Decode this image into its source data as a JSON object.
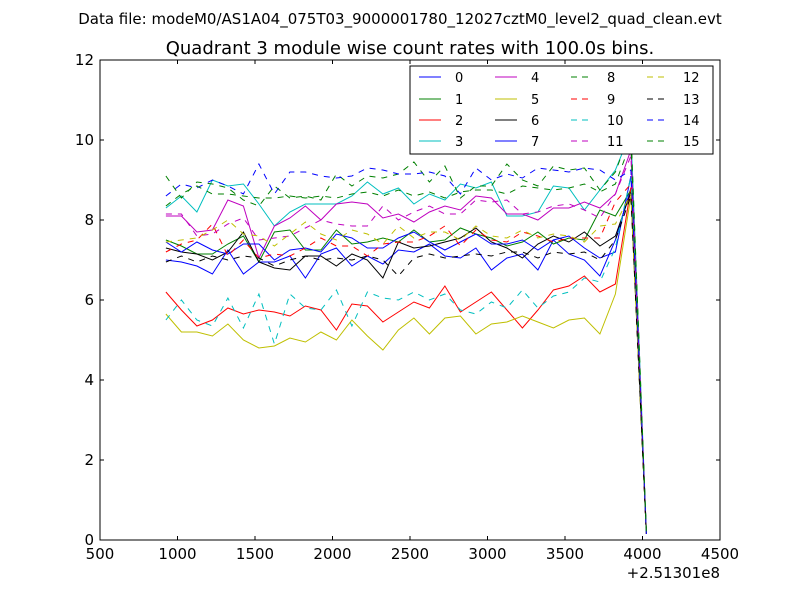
{
  "chart_data": {
    "type": "line",
    "suptitle": "Data file: modeM0/AS1A04_075T03_9000001780_12027cztM0_level2_quad_clean.evt",
    "title": "Quadrant 3 module wise count rates with 100.0s bins.",
    "xlabel": "",
    "ylabel": "",
    "xlim": [
      500,
      4500
    ],
    "ylim": [
      0,
      12
    ],
    "x_ticks": [
      500,
      1000,
      1500,
      2000,
      2500,
      3000,
      3500,
      4000,
      4500
    ],
    "y_ticks": [
      0,
      2,
      4,
      6,
      8,
      10,
      12
    ],
    "x_tick_labels": [
      "500",
      "1000",
      "1500",
      "2000",
      "2500",
      "3000",
      "3500",
      "4000",
      "4500"
    ],
    "y_tick_labels": [
      "0",
      "2",
      "4",
      "6",
      "8",
      "10",
      "12"
    ],
    "x_offset_label": "+2.51301e8",
    "grid": false,
    "legend_position": "top-right",
    "legend_columns": 4,
    "x": [
      925,
      1025,
      1125,
      1225,
      1325,
      1425,
      1525,
      1625,
      1725,
      1825,
      1925,
      2025,
      2125,
      2225,
      2325,
      2425,
      2525,
      2625,
      2725,
      2825,
      2925,
      3025,
      3125,
      3225,
      3325,
      3425,
      3525,
      3625,
      3725,
      3825,
      3925,
      4025
    ],
    "series": [
      {
        "name": "0",
        "color": "#0000ff",
        "dash": "solid",
        "values": [
          7.0,
          6.95,
          6.85,
          6.65,
          7.25,
          6.65,
          6.95,
          6.95,
          7.1,
          6.55,
          7.15,
          7.3,
          6.85,
          7.1,
          6.9,
          7.25,
          7.2,
          7.4,
          7.1,
          7.05,
          7.3,
          6.75,
          7.05,
          7.15,
          6.75,
          7.5,
          7.15,
          7.0,
          6.6,
          7.5,
          8.8,
          0.15
        ]
      },
      {
        "name": "1",
        "color": "#008000",
        "dash": "solid",
        "values": [
          7.5,
          7.35,
          7.15,
          7.15,
          7.4,
          7.6,
          6.95,
          7.7,
          7.75,
          7.25,
          7.25,
          7.75,
          7.4,
          7.45,
          7.55,
          7.45,
          7.75,
          7.45,
          7.5,
          7.8,
          7.65,
          7.55,
          7.35,
          7.45,
          7.7,
          7.4,
          7.55,
          7.5,
          8.25,
          8.1,
          8.75,
          0.15
        ]
      },
      {
        "name": "2",
        "color": "#ff0000",
        "dash": "solid",
        "values": [
          6.2,
          5.75,
          5.35,
          5.5,
          5.8,
          5.65,
          5.75,
          5.7,
          5.6,
          5.85,
          5.75,
          5.25,
          5.9,
          5.85,
          5.45,
          5.7,
          5.95,
          5.8,
          6.35,
          5.7,
          5.95,
          6.2,
          5.75,
          5.3,
          5.75,
          6.25,
          6.35,
          6.6,
          6.2,
          6.4,
          8.8,
          0.15
        ]
      },
      {
        "name": "3",
        "color": "#00bfbf",
        "dash": "solid",
        "values": [
          8.3,
          8.6,
          8.2,
          9.0,
          8.85,
          8.9,
          8.4,
          7.85,
          8.2,
          8.4,
          8.4,
          8.4,
          8.6,
          8.95,
          8.65,
          8.8,
          8.4,
          8.65,
          8.5,
          8.9,
          8.8,
          8.95,
          8.1,
          8.1,
          8.2,
          8.85,
          8.8,
          8.25,
          8.75,
          9.25,
          10.2,
          0.15
        ]
      },
      {
        "name": "4",
        "color": "#bf00bf",
        "dash": "solid",
        "values": [
          8.1,
          8.1,
          7.7,
          7.75,
          8.5,
          8.35,
          7.05,
          7.85,
          8.05,
          8.35,
          8.0,
          8.4,
          8.45,
          8.4,
          8.05,
          8.15,
          7.95,
          8.2,
          8.35,
          8.25,
          8.6,
          8.55,
          8.15,
          8.15,
          8.0,
          8.3,
          8.3,
          8.45,
          8.3,
          8.65,
          9.75,
          0.15
        ]
      },
      {
        "name": "5",
        "color": "#bfbf00",
        "dash": "solid",
        "values": [
          5.65,
          5.2,
          5.2,
          5.1,
          5.4,
          5.0,
          4.8,
          4.85,
          5.05,
          4.95,
          5.2,
          5.0,
          5.5,
          5.1,
          4.75,
          5.25,
          5.55,
          5.15,
          5.55,
          5.6,
          5.15,
          5.4,
          5.45,
          5.6,
          5.45,
          5.3,
          5.5,
          5.55,
          5.15,
          6.15,
          8.6,
          0.15
        ]
      },
      {
        "name": "6",
        "color": "#000000",
        "dash": "solid",
        "values": [
          7.3,
          7.2,
          7.15,
          7.0,
          7.2,
          7.7,
          6.95,
          6.8,
          6.75,
          7.1,
          7.1,
          6.85,
          7.15,
          7.0,
          6.55,
          7.45,
          7.3,
          7.35,
          7.45,
          7.55,
          7.8,
          7.45,
          7.3,
          7.05,
          7.4,
          7.6,
          7.45,
          7.7,
          7.35,
          7.6,
          8.7,
          0.15
        ]
      },
      {
        "name": "7",
        "color": "#0000ff",
        "dash": "solid",
        "values": [
          7.45,
          7.2,
          7.45,
          7.25,
          7.15,
          7.4,
          7.4,
          7.0,
          7.25,
          7.3,
          7.2,
          7.65,
          7.55,
          7.3,
          7.3,
          7.55,
          7.7,
          7.45,
          7.25,
          7.45,
          7.65,
          7.4,
          7.4,
          7.5,
          7.25,
          7.5,
          7.6,
          7.3,
          7.05,
          7.2,
          9.1,
          0.15
        ]
      },
      {
        "name": "8",
        "color": "#008000",
        "dash": "dashed",
        "values": [
          9.1,
          8.55,
          8.95,
          8.9,
          8.8,
          8.5,
          8.35,
          8.85,
          8.55,
          8.6,
          8.5,
          9.15,
          8.85,
          9.1,
          9.05,
          9.15,
          9.45,
          8.95,
          9.35,
          8.55,
          8.85,
          8.85,
          9.4,
          9.0,
          8.85,
          9.35,
          9.25,
          9.3,
          8.75,
          9.2,
          10.25,
          0.15
        ]
      },
      {
        "name": "9",
        "color": "#ff0000",
        "dash": "dashed",
        "values": [
          7.2,
          7.4,
          7.5,
          7.9,
          7.1,
          7.5,
          7.05,
          7.15,
          7.1,
          7.3,
          7.55,
          7.35,
          7.35,
          7.1,
          7.4,
          7.45,
          7.45,
          7.6,
          7.85,
          7.35,
          7.75,
          7.5,
          7.45,
          7.7,
          7.6,
          7.45,
          7.55,
          7.55,
          7.55,
          8.45,
          8.9,
          0.15
        ]
      },
      {
        "name": "10",
        "color": "#00bfbf",
        "dash": "dashed",
        "values": [
          5.5,
          6.0,
          5.5,
          5.35,
          6.05,
          5.3,
          6.15,
          4.9,
          6.15,
          5.8,
          5.75,
          6.25,
          5.35,
          6.2,
          6.05,
          6.0,
          6.2,
          6.0,
          6.15,
          5.75,
          5.65,
          5.95,
          5.8,
          6.25,
          5.8,
          6.1,
          6.2,
          6.55,
          6.45,
          7.3,
          9.1,
          0.15
        ]
      },
      {
        "name": "11",
        "color": "#bf00bf",
        "dash": "dashed",
        "values": [
          8.15,
          8.15,
          7.6,
          7.65,
          7.9,
          8.05,
          7.5,
          7.55,
          7.6,
          7.8,
          8.0,
          7.9,
          7.85,
          7.85,
          8.35,
          8.0,
          8.2,
          8.35,
          8.15,
          8.15,
          8.5,
          8.45,
          8.5,
          8.15,
          8.2,
          8.35,
          8.4,
          8.25,
          8.05,
          8.65,
          9.6,
          0.15
        ]
      },
      {
        "name": "12",
        "color": "#bfbf00",
        "dash": "dashed",
        "values": [
          7.45,
          7.5,
          7.55,
          7.75,
          8.0,
          7.65,
          7.6,
          7.35,
          7.65,
          7.95,
          7.65,
          7.5,
          7.75,
          7.65,
          7.4,
          7.85,
          7.55,
          7.7,
          7.7,
          7.5,
          7.85,
          7.6,
          7.55,
          7.75,
          7.55,
          7.65,
          7.6,
          7.45,
          7.85,
          7.9,
          8.65,
          0.15
        ]
      },
      {
        "name": "13",
        "color": "#000000",
        "dash": "dashed",
        "values": [
          6.95,
          7.1,
          6.95,
          7.1,
          7.0,
          7.1,
          7.05,
          6.85,
          7.0,
          7.1,
          7.0,
          7.05,
          7.0,
          7.1,
          7.0,
          6.6,
          7.05,
          7.15,
          7.05,
          7.1,
          7.15,
          7.1,
          7.2,
          7.2,
          7.05,
          7.2,
          7.15,
          7.2,
          7.0,
          7.5,
          8.6,
          0.15
        ]
      },
      {
        "name": "14",
        "color": "#0000ff",
        "dash": "dashed",
        "values": [
          8.6,
          8.9,
          8.8,
          9.0,
          8.85,
          8.65,
          9.4,
          8.65,
          9.2,
          9.2,
          9.1,
          9.05,
          9.1,
          9.3,
          9.25,
          9.15,
          9.15,
          9.2,
          9.1,
          8.65,
          9.3,
          9.0,
          9.15,
          9.05,
          9.3,
          9.25,
          9.2,
          9.3,
          9.25,
          9.0,
          9.25,
          0.15
        ]
      },
      {
        "name": "15",
        "color": "#008000",
        "dash": "dashed",
        "values": [
          8.35,
          8.65,
          8.85,
          8.65,
          8.65,
          8.6,
          8.55,
          8.55,
          8.6,
          8.55,
          8.6,
          8.55,
          8.65,
          8.7,
          8.6,
          8.75,
          8.6,
          8.7,
          8.55,
          8.7,
          8.75,
          8.75,
          8.65,
          8.85,
          8.8,
          8.75,
          8.8,
          8.9,
          8.7,
          8.9,
          9.95,
          0.15
        ]
      }
    ]
  }
}
